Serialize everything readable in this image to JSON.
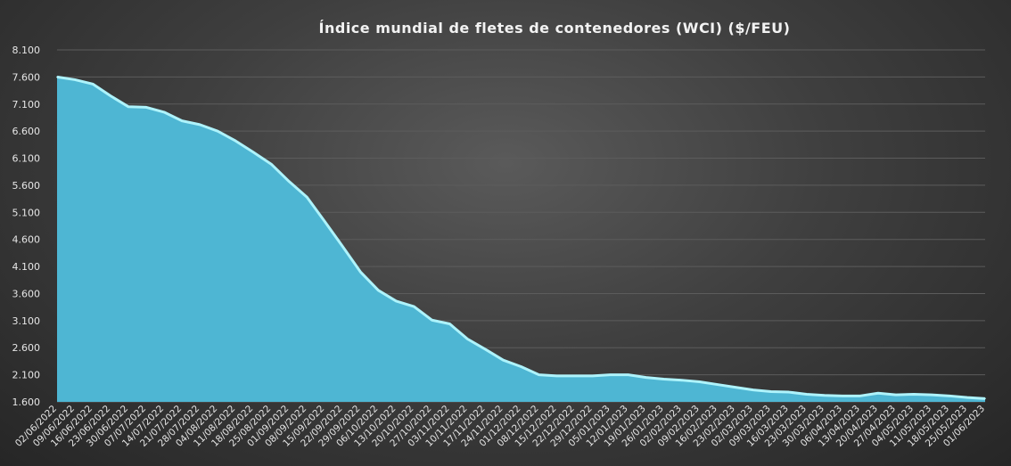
{
  "chart_data": {
    "type": "area",
    "title": "Índice mundial de fletes de contenedores (WCI) ($/FEU)",
    "xlabel": "",
    "ylabel": "",
    "ylim": [
      1600,
      8100
    ],
    "yticks": [
      "1.600",
      "2.100",
      "2.600",
      "3.100",
      "3.600",
      "4.100",
      "4.600",
      "5.100",
      "5.600",
      "6.100",
      "6.600",
      "7.100",
      "7.600",
      "8.100"
    ],
    "ytick_values": [
      1600,
      2100,
      2600,
      3100,
      3600,
      4100,
      4600,
      5100,
      5600,
      6100,
      6600,
      7100,
      7600,
      8100
    ],
    "grid": true,
    "legend": "none",
    "colors": {
      "fill": "#4eb6d3",
      "line": "#aef3fb"
    },
    "x": [
      "02/06/2022",
      "09/06/2022",
      "16/06/2022",
      "23/06/2022",
      "30/06/2022",
      "07/07/2022",
      "14/07/2022",
      "21/07/2022",
      "28/07/2022",
      "04/08/2022",
      "11/08/2022",
      "18/08/2022",
      "25/08/2022",
      "01/09/2022",
      "08/09/2022",
      "15/09/2022",
      "22/09/2022",
      "29/09/2022",
      "06/10/2022",
      "13/10/2022",
      "20/10/2022",
      "27/10/2022",
      "03/11/2022",
      "10/11/2022",
      "17/11/2022",
      "24/11/2022",
      "01/12/2022",
      "08/12/2022",
      "15/12/2022",
      "22/12/2022",
      "29/12/2022",
      "05/01/2023",
      "12/01/2023",
      "19/01/2023",
      "26/01/2023",
      "02/02/2023",
      "09/02/2023",
      "16/02/2023",
      "23/02/2023",
      "02/03/2023",
      "09/03/2023",
      "16/03/2023",
      "23/03/2023",
      "30/03/2023",
      "06/04/2023",
      "13/04/2023",
      "20/04/2023",
      "27/04/2023",
      "04/05/2023",
      "11/05/2023",
      "18/05/2023",
      "25/05/2023",
      "01/06/2023"
    ],
    "values": [
      7600,
      7550,
      7470,
      7250,
      7050,
      7040,
      6950,
      6790,
      6720,
      6600,
      6420,
      6210,
      5990,
      5670,
      5380,
      4930,
      4470,
      4000,
      3660,
      3460,
      3360,
      3110,
      3040,
      2760,
      2570,
      2370,
      2250,
      2100,
      2080,
      2080,
      2080,
      2100,
      2100,
      2050,
      2020,
      2000,
      1970,
      1920,
      1870,
      1820,
      1790,
      1780,
      1740,
      1720,
      1710,
      1710,
      1760,
      1730,
      1740,
      1730,
      1710,
      1680,
      1660
    ]
  }
}
